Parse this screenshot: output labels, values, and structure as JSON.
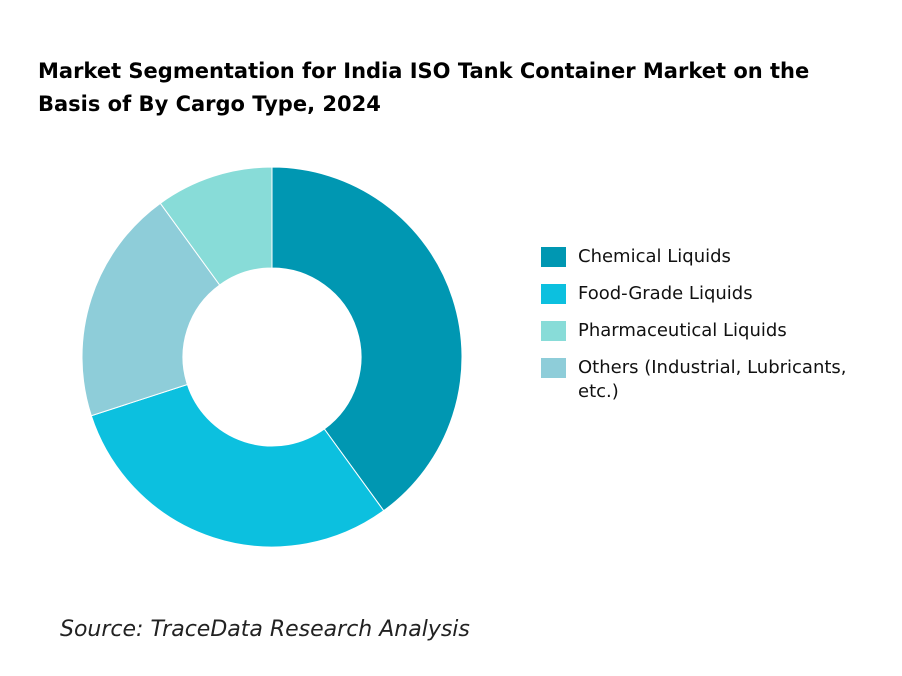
{
  "chart_data": {
    "type": "pie",
    "donut": true,
    "title": "Market Segmentation for India ISO Tank Container Market on the Basis of  By Cargo Type, 2024",
    "categories": [
      "Chemical Liquids",
      "Food-Grade Liquids",
      "Pharmaceutical Liquids",
      "Others (Industrial, Lubricants, etc.)"
    ],
    "values": [
      40,
      30,
      10,
      20
    ],
    "unit": "%",
    "colors": [
      "#0097b2",
      "#0cc0df",
      "#88dcd8",
      "#8ecdd9"
    ],
    "legend_position": "right"
  },
  "source": "Source: TraceData Research Analysis"
}
